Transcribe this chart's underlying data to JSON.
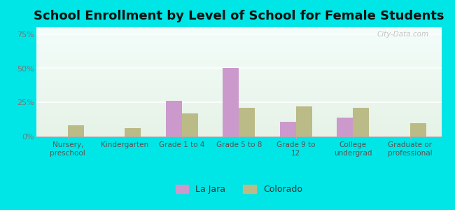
{
  "title": "School Enrollment by Level of School for Female Students",
  "categories": [
    "Nursery,\npreschool",
    "Kindergarten",
    "Grade 1 to 4",
    "Grade 5 to 8",
    "Grade 9 to\n12",
    "College\nundergrad",
    "Graduate or\nprofessional"
  ],
  "la_jara": [
    0,
    0,
    26,
    50,
    11,
    14,
    0
  ],
  "colorado": [
    8,
    6,
    17,
    21,
    22,
    21,
    10
  ],
  "la_jara_color": "#cc99cc",
  "colorado_color": "#bbbb88",
  "background_color": "#00e5e5",
  "yticks": [
    0,
    25,
    50,
    75
  ],
  "ylim": [
    0,
    80
  ],
  "title_fontsize": 13,
  "tick_fontsize": 8,
  "legend_labels": [
    "La Jara",
    "Colorado"
  ],
  "watermark": "City-Data.com",
  "plot_bg_color_top": "#e8f5e8",
  "plot_bg_color_bottom": "#f0faf0",
  "grid_color": "#ffffff",
  "spine_color": "#aaaaaa",
  "ytick_color": "#777777",
  "xtick_color": "#555555"
}
